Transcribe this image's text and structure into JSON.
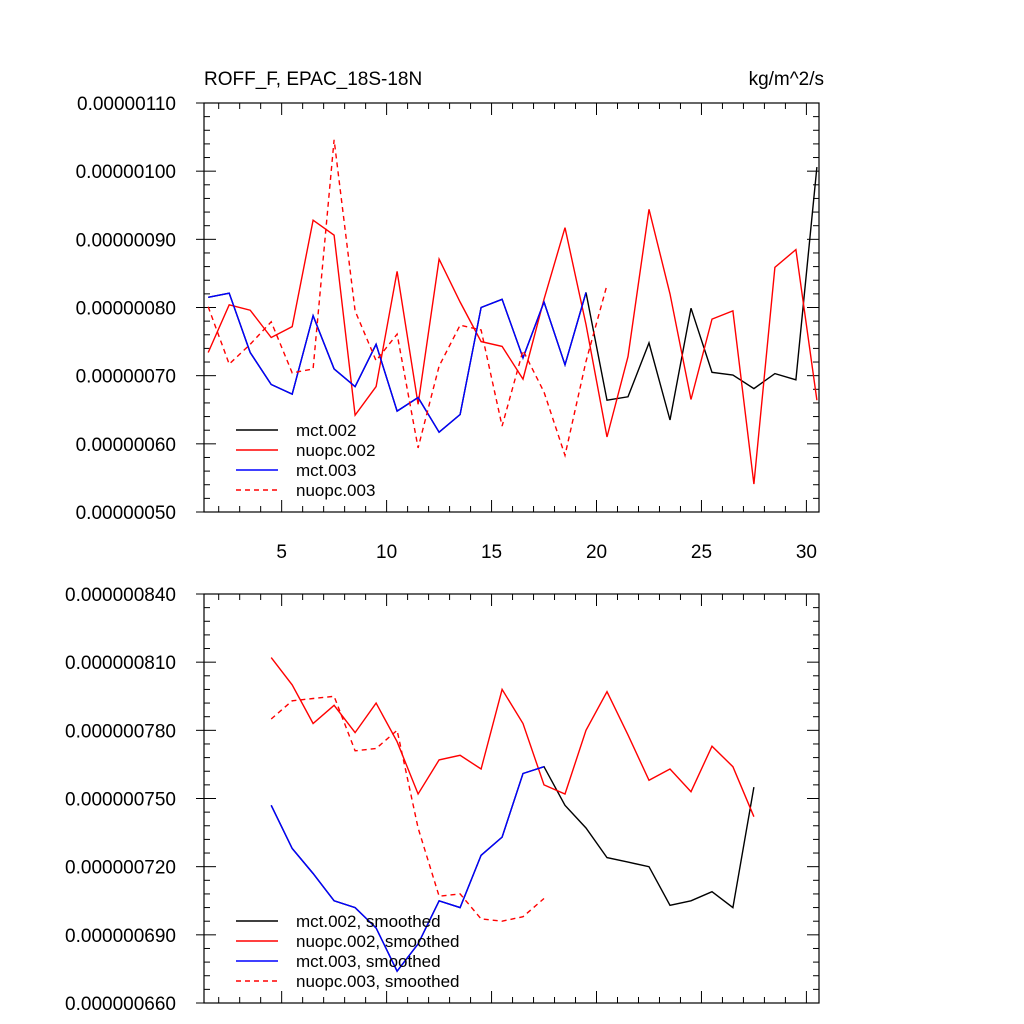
{
  "figure": {
    "title_left": "ROFF_F, EPAC_18S-18N",
    "title_right": "kg/m^2/s"
  },
  "chart_data": [
    {
      "type": "line",
      "title": "ROFF_F, EPAC_18S-18N",
      "units": "kg/m^2/s",
      "xlim": [
        1.3,
        30.6
      ],
      "ylim": [
        5e-07,
        1.1e-06
      ],
      "xticks": [
        5,
        10,
        15,
        20,
        25,
        30
      ],
      "xtick_labels": [
        "5",
        "10",
        "15",
        "20",
        "25",
        "30"
      ],
      "yticks": [
        5e-07,
        6e-07,
        7e-07,
        8e-07,
        9e-07,
        1e-06,
        1.1e-06
      ],
      "ytick_labels": [
        "0.00000050",
        "0.00000060",
        "0.00000070",
        "0.00000080",
        "0.00000090",
        "0.00000100",
        "0.00000110"
      ],
      "show_xtick_labels": true,
      "legend": "bottom-left",
      "series": [
        {
          "name": "mct.002",
          "color": "#000000",
          "dash": "solid",
          "x": [
            1.5,
            2.5,
            3.5,
            4.5,
            5.5,
            6.5,
            7.5,
            8.5,
            9.5,
            10.5,
            11.5,
            12.5,
            13.5,
            14.5,
            15.5,
            16.5,
            17.5,
            18.5,
            19.5,
            20.5,
            21.5,
            22.5,
            23.5,
            24.5,
            25.5,
            26.5,
            27.5,
            28.5,
            29.5,
            30.5
          ],
          "values": [
            8.15e-07,
            8.21e-07,
            7.34e-07,
            6.87e-07,
            6.73e-07,
            7.88e-07,
            7.1e-07,
            6.84e-07,
            7.46e-07,
            6.48e-07,
            6.68e-07,
            6.17e-07,
            6.43e-07,
            8e-07,
            8.12e-07,
            7.26e-07,
            8.08e-07,
            7.16e-07,
            8.22e-07,
            6.64e-07,
            6.69e-07,
            7.48e-07,
            6.35e-07,
            7.99e-07,
            7.05e-07,
            7.01e-07,
            6.81e-07,
            7.03e-07,
            6.94e-07,
            1.006e-06
          ]
        },
        {
          "name": "nuopc.002",
          "color": "#ff0000",
          "dash": "solid",
          "x": [
            1.5,
            2.5,
            3.5,
            4.5,
            5.5,
            6.5,
            7.5,
            8.5,
            9.5,
            10.5,
            11.5,
            12.5,
            13.5,
            14.5,
            15.5,
            16.5,
            17.5,
            18.5,
            19.5,
            20.5,
            21.5,
            22.5,
            23.5,
            24.5,
            25.5,
            26.5,
            27.5,
            28.5,
            29.5,
            30.5
          ],
          "values": [
            7.34e-07,
            8.04e-07,
            7.96e-07,
            7.56e-07,
            7.72e-07,
            9.28e-07,
            9.06e-07,
            6.42e-07,
            6.84e-07,
            8.53e-07,
            6.58e-07,
            8.71e-07,
            8.08e-07,
            7.5e-07,
            7.43e-07,
            6.95e-07,
            8.12e-07,
            9.17e-07,
            7.75e-07,
            6.1e-07,
            7.28e-07,
            9.44e-07,
            8.2e-07,
            6.65e-07,
            7.83e-07,
            7.95e-07,
            5.41e-07,
            8.59e-07,
            8.85e-07,
            6.64e-07
          ]
        },
        {
          "name": "mct.003",
          "color": "#0000ff",
          "dash": "solid",
          "x": [
            1.5,
            2.5,
            3.5,
            4.5,
            5.5,
            6.5,
            7.5,
            8.5,
            9.5,
            10.5,
            11.5,
            12.5,
            13.5,
            14.5,
            15.5,
            16.5,
            17.5,
            18.5,
            19.5
          ],
          "values": [
            8.15e-07,
            8.21e-07,
            7.34e-07,
            6.87e-07,
            6.73e-07,
            7.88e-07,
            7.1e-07,
            6.84e-07,
            7.46e-07,
            6.48e-07,
            6.68e-07,
            6.17e-07,
            6.43e-07,
            8e-07,
            8.12e-07,
            7.26e-07,
            8.08e-07,
            7.16e-07,
            8.22e-07
          ]
        },
        {
          "name": "nuopc.003",
          "color": "#ff0000",
          "dash": "dashed",
          "x": [
            1.5,
            2.5,
            3.5,
            4.5,
            5.5,
            6.5,
            7.5,
            8.5,
            9.5,
            10.5,
            11.5,
            12.5,
            13.5,
            14.5,
            15.5,
            16.5,
            17.5,
            18.5,
            19.5,
            20.5
          ],
          "values": [
            8.01e-07,
            7.17e-07,
            7.46e-07,
            7.79e-07,
            7.04e-07,
            7.1e-07,
            1.046e-06,
            7.95e-07,
            7.22e-07,
            7.61e-07,
            5.94e-07,
            7.14e-07,
            7.74e-07,
            7.67e-07,
            6.26e-07,
            7.37e-07,
            6.76e-07,
            5.83e-07,
            7.21e-07,
            8.33e-07
          ]
        }
      ]
    },
    {
      "type": "line",
      "title": "",
      "xlim": [
        1.3,
        30.6
      ],
      "ylim": [
        6.6e-07,
        8.4e-07
      ],
      "xticks": [
        5,
        10,
        15,
        20,
        25,
        30
      ],
      "xtick_labels": [],
      "yticks": [
        6.6e-07,
        6.9e-07,
        7.2e-07,
        7.5e-07,
        7.8e-07,
        8.1e-07,
        8.4e-07
      ],
      "ytick_labels": [
        "0.000000660",
        "0.000000690",
        "0.000000720",
        "0.000000750",
        "0.000000780",
        "0.000000810",
        "0.000000840"
      ],
      "show_xtick_labels": false,
      "legend": "bottom-left",
      "series": [
        {
          "name": "mct.002, smoothed",
          "color": "#000000",
          "dash": "solid",
          "x": [
            4.5,
            5.5,
            6.5,
            7.5,
            8.5,
            9.5,
            10.5,
            11.5,
            12.5,
            13.5,
            14.5,
            15.5,
            16.5,
            17.5,
            18.5,
            19.5,
            20.5,
            21.5,
            22.5,
            23.5,
            24.5,
            25.5,
            26.5,
            27.5
          ],
          "values": [
            7.47e-07,
            7.28e-07,
            7.17e-07,
            7.05e-07,
            7.02e-07,
            6.93e-07,
            6.74e-07,
            6.86e-07,
            7.05e-07,
            7.02e-07,
            7.25e-07,
            7.33e-07,
            7.61e-07,
            7.64e-07,
            7.47e-07,
            7.37e-07,
            7.24e-07,
            7.22e-07,
            7.2e-07,
            7.03e-07,
            7.05e-07,
            7.09e-07,
            7.02e-07,
            7.55e-07
          ]
        },
        {
          "name": "nuopc.002, smoothed",
          "color": "#ff0000",
          "dash": "solid",
          "x": [
            4.5,
            5.5,
            6.5,
            7.5,
            8.5,
            9.5,
            10.5,
            11.5,
            12.5,
            13.5,
            14.5,
            15.5,
            16.5,
            17.5,
            18.5,
            19.5,
            20.5,
            21.5,
            22.5,
            23.5,
            24.5,
            25.5,
            26.5,
            27.5
          ],
          "values": [
            8.12e-07,
            8e-07,
            7.83e-07,
            7.91e-07,
            7.79e-07,
            7.92e-07,
            7.75e-07,
            7.52e-07,
            7.67e-07,
            7.69e-07,
            7.63e-07,
            7.98e-07,
            7.83e-07,
            7.56e-07,
            7.52e-07,
            7.8e-07,
            7.97e-07,
            7.78e-07,
            7.58e-07,
            7.63e-07,
            7.53e-07,
            7.73e-07,
            7.64e-07,
            7.42e-07
          ]
        },
        {
          "name": "mct.003, smoothed",
          "color": "#0000ff",
          "dash": "solid",
          "x": [
            4.5,
            5.5,
            6.5,
            7.5,
            8.5,
            9.5,
            10.5,
            11.5,
            12.5,
            13.5,
            14.5,
            15.5,
            16.5,
            17.5
          ],
          "values": [
            7.47e-07,
            7.28e-07,
            7.17e-07,
            7.05e-07,
            7.02e-07,
            6.93e-07,
            6.74e-07,
            6.86e-07,
            7.05e-07,
            7.02e-07,
            7.25e-07,
            7.33e-07,
            7.61e-07,
            7.64e-07
          ]
        },
        {
          "name": "nuopc.003, smoothed",
          "color": "#ff0000",
          "dash": "dashed",
          "x": [
            4.5,
            5.5,
            6.5,
            7.5,
            8.5,
            9.5,
            10.5,
            11.5,
            12.5,
            13.5,
            14.5,
            15.5,
            16.5,
            17.5
          ],
          "values": [
            7.85e-07,
            7.93e-07,
            7.94e-07,
            7.95e-07,
            7.71e-07,
            7.72e-07,
            7.8e-07,
            7.37e-07,
            7.07e-07,
            7.08e-07,
            6.97e-07,
            6.96e-07,
            6.98e-07,
            7.06e-07
          ]
        }
      ]
    }
  ]
}
